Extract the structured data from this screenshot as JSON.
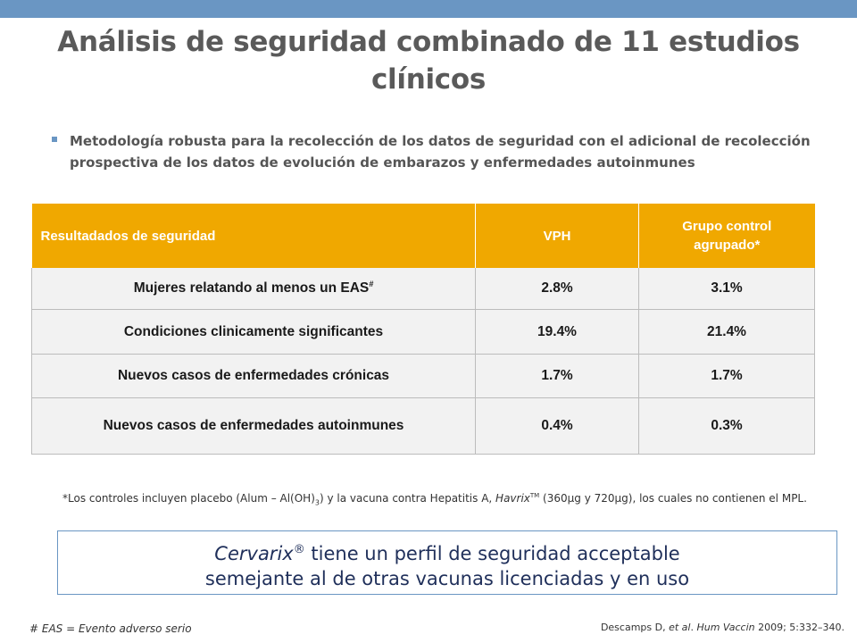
{
  "title": "Análisis de seguridad combinado de 11 estudios clínicos",
  "bullet": "Metodología robusta para la recolección de los datos de seguridad con el adicional de recolección prospectiva de los datos de evolución de embarazos y enfermedades autoinmunes",
  "table": {
    "headers": [
      "Resultadados de seguridad",
      "VPH",
      "Grupo control agrupado*"
    ],
    "rows": [
      {
        "label": "Mujeres relatando al menos un EAS",
        "mark": "#",
        "vph": "2.8%",
        "control": "3.1%"
      },
      {
        "label": "Condiciones clinicamente significantes",
        "vph": "19.4%",
        "control": "21.4%"
      },
      {
        "label": "Nuevos casos de enfermedades crónicas",
        "vph": "1.7%",
        "control": "1.7%"
      },
      {
        "label": "Nuevos casos de enfermedades autoinmunes",
        "vph": "0.4%",
        "control": "0.3%"
      }
    ]
  },
  "footnote": {
    "part1": "*Los controles incluyen placebo (Alum – Al(OH)",
    "sub": "3",
    "part2": ") y la vacuna contra Hepatitis A, ",
    "brand": "Havrix",
    "tm": "TM",
    "part3": " (360µg y 720µg), los cuales no contienen el MPL."
  },
  "callout": {
    "brand": "Cervarix",
    "reg": "®",
    "line1_rest": " tiene un perfil de seguridad acceptable",
    "line2": "semejante al de otras vacunas licenciadas y en uso"
  },
  "eas_note": "# EAS = Evento adverso  serio",
  "reference": {
    "authors": "Descamps D, ",
    "etal": "et al",
    "dot": ". ",
    "journal": "Hum Vaccin",
    "rest": " 2009; 5:332–340."
  },
  "colors": {
    "top_bar": "#6a96c3",
    "header": "#f0a800",
    "callout_text": "#1f2f5a"
  }
}
